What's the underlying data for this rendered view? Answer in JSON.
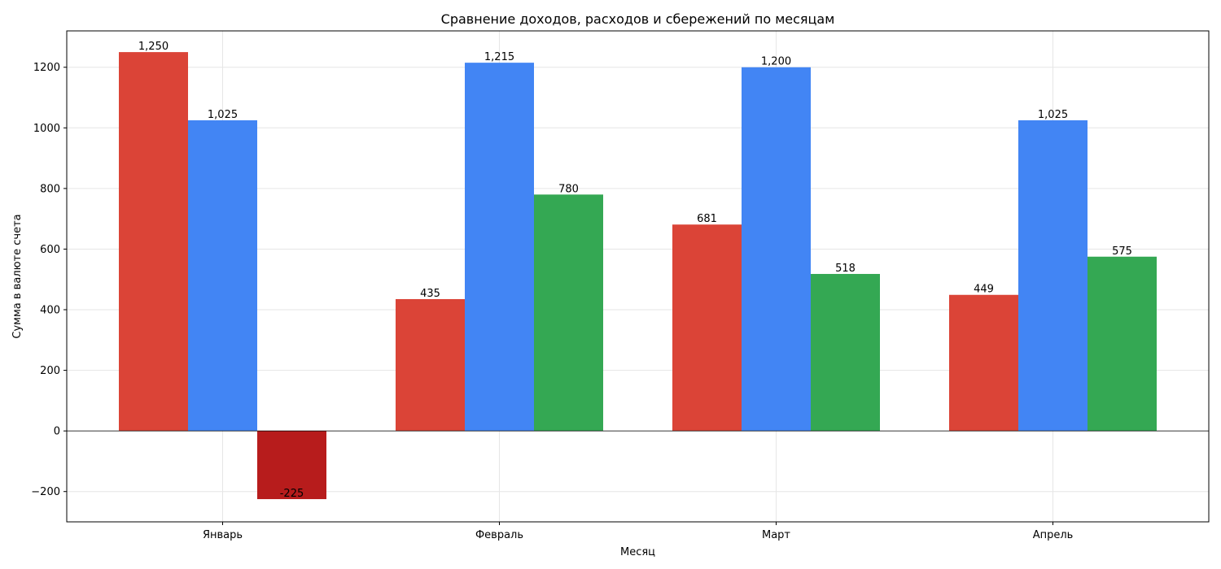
{
  "chart_data": {
    "type": "bar",
    "title": "Сравнение доходов, расходов и сбережений по месяцам",
    "xlabel": "Месяц",
    "ylabel": "Сумма в валюте счета",
    "categories": [
      "Январь",
      "Февраль",
      "Март",
      "Апрель"
    ],
    "series": [
      {
        "values": [
          1250,
          435,
          681,
          449
        ],
        "labels": [
          "1,250",
          "435",
          "681",
          "449"
        ],
        "color": "#db4437"
      },
      {
        "values": [
          1025,
          1215,
          1200,
          1025
        ],
        "labels": [
          "1,025",
          "1,215",
          "1,200",
          "1,025"
        ],
        "color": "#4285f4"
      },
      {
        "values": [
          -225,
          780,
          518,
          575
        ],
        "labels": [
          "-225",
          "780",
          "518",
          "575"
        ],
        "color": "#34a853",
        "negative_color": "#b71c1c"
      }
    ],
    "ylim": [
      -300,
      1320
    ],
    "yticks": [
      -200,
      0,
      200,
      400,
      600,
      800,
      1000,
      1200
    ],
    "ytick_labels": [
      "−200",
      "0",
      "200",
      "400",
      "600",
      "800",
      "1000",
      "1200"
    ],
    "grid": true,
    "zero_line": true
  }
}
